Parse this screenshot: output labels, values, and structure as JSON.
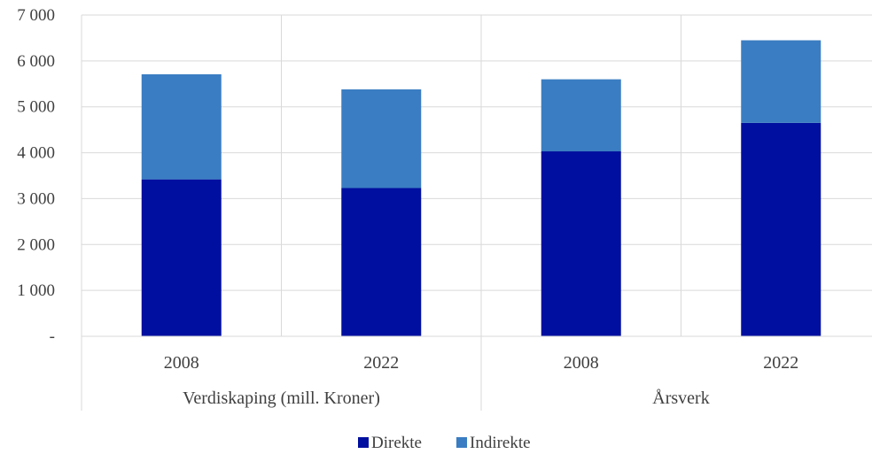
{
  "chart_data": {
    "type": "bar",
    "stacked": true,
    "groups": [
      {
        "label": "Verdiskaping (mill. Kroner)",
        "categories": [
          "2008",
          "2022"
        ]
      },
      {
        "label": "Årsverk",
        "categories": [
          "2008",
          "2022"
        ]
      }
    ],
    "categories": [
      "2008",
      "2022",
      "2008",
      "2022"
    ],
    "series": [
      {
        "name": "Direkte",
        "color": "#000F9F",
        "values": [
          3420,
          3230,
          4030,
          4650
        ]
      },
      {
        "name": "Indirekte",
        "color": "#3A7DC2",
        "values": [
          2290,
          2150,
          1570,
          1800
        ]
      }
    ],
    "ylim": [
      0,
      7000
    ],
    "yticks": [
      0,
      1000,
      2000,
      3000,
      4000,
      5000,
      6000,
      7000
    ],
    "ytick_labels": [
      "-",
      "1 000",
      "2 000",
      "3 000",
      "4 000",
      "5 000",
      "6 000",
      "7 000"
    ],
    "grid": true,
    "legend_position": "bottom",
    "title": "",
    "xlabel": "",
    "ylabel": ""
  }
}
